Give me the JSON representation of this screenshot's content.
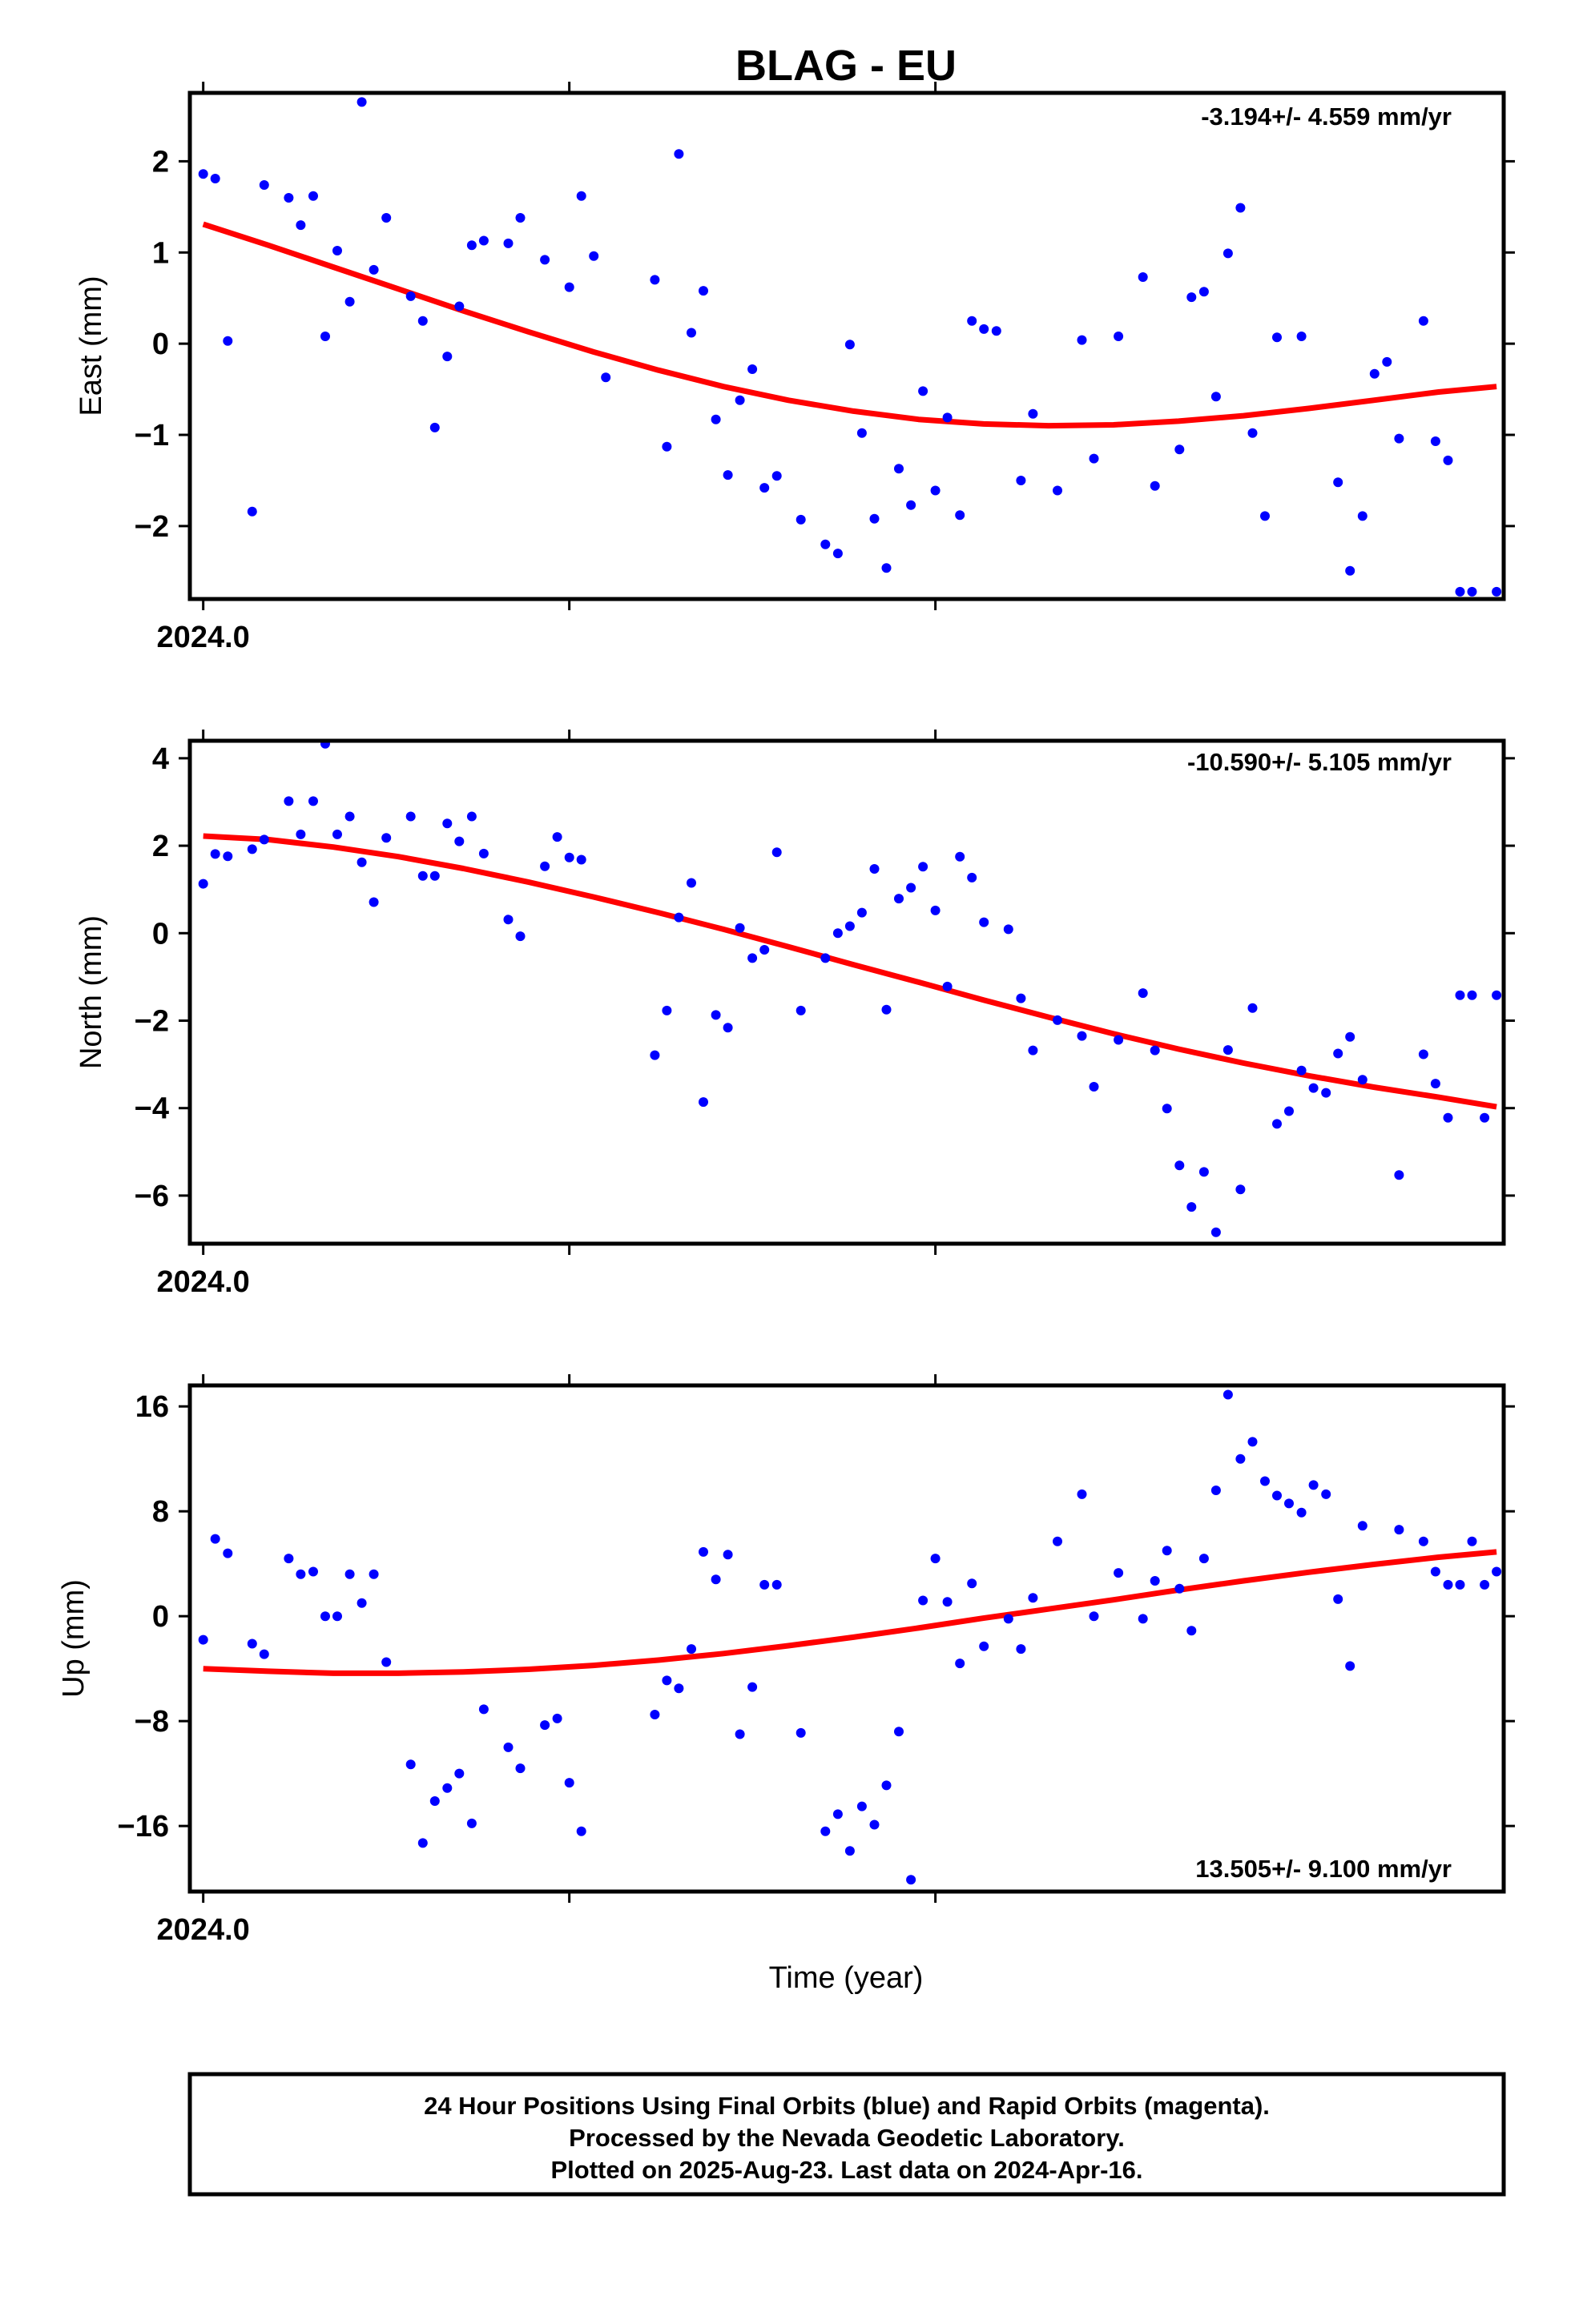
{
  "title": "BLAG - EU",
  "xlabel": "Time (year)",
  "footer": {
    "line1": "24 Hour Positions Using Final Orbits (blue) and Rapid Orbits (magenta).",
    "line2": "Processed by the Nevada Geodetic Laboratory.",
    "line3": "Plotted on 2025-Aug-23. Last data on 2024-Apr-16."
  },
  "colors": {
    "points": "#0000ff",
    "fit": "#ff0000",
    "frame": "#000000"
  },
  "chart_data": [
    {
      "type": "scatter",
      "ylabel": "East (mm)",
      "rate_label": "-3.194+/- 4.559 mm/yr",
      "xlim": [
        2023.997,
        2024.292
      ],
      "ylim": [
        -2.8,
        2.75
      ],
      "yticks": [
        2,
        1,
        0,
        -1,
        -2
      ],
      "ytick_labels": [
        "2",
        "1",
        "0",
        "−1",
        "−2"
      ],
      "xtick_label": "2024.0",
      "series": [
        {
          "kind": "points",
          "x": [
            2024.0,
            2024.0027,
            2024.0055,
            2024.011,
            2024.0137,
            2024.0192,
            2024.0219,
            2024.0247,
            2024.0274,
            2024.0301,
            2024.0329,
            2024.0356,
            2024.0383,
            2024.0411,
            2024.0466,
            2024.0493,
            2024.052,
            2024.0548,
            2024.0575,
            2024.0603,
            2024.063,
            2024.0685,
            2024.0712,
            2024.0767,
            2024.0822,
            2024.0849,
            2024.0877,
            2024.0904,
            2024.1014,
            2024.1041,
            2024.1068,
            2024.1096,
            2024.1123,
            2024.1151,
            2024.1178,
            2024.1205,
            2024.1233,
            2024.126,
            2024.1288,
            2024.1342,
            2024.1397,
            2024.1425,
            2024.1452,
            2024.1479,
            2024.1507,
            2024.1534,
            2024.1562,
            2024.1589,
            2024.1616,
            2024.1644,
            2024.1671,
            2024.1699,
            2024.1726,
            2024.1753,
            2024.1781,
            2024.1836,
            2024.1863,
            2024.1918,
            2024.1973,
            2024.2,
            2024.2055,
            2024.211,
            2024.2137,
            2024.2192,
            2024.2219,
            2024.2247,
            2024.2274,
            2024.2301,
            2024.2329,
            2024.2356,
            2024.2384,
            2024.2411,
            2024.2466,
            2024.2548,
            2024.2575,
            2024.2603,
            2024.263,
            2024.2658,
            2024.2685,
            2024.274,
            2024.2767,
            2024.2795,
            2024.2822,
            2024.2849,
            2024.2904
          ],
          "y": [
            1.86,
            1.81,
            0.03,
            -1.84,
            1.74,
            1.6,
            1.3,
            1.62,
            0.08,
            1.02,
            0.46,
            2.65,
            0.81,
            1.38,
            0.52,
            0.25,
            -0.92,
            -0.14,
            0.41,
            1.08,
            1.13,
            1.1,
            1.38,
            0.92,
            0.62,
            1.62,
            0.96,
            -0.37,
            0.7,
            -1.13,
            2.08,
            0.12,
            0.58,
            -0.83,
            -1.44,
            -0.62,
            -0.28,
            -1.58,
            -1.45,
            -1.93,
            -2.2,
            -2.3,
            -0.01,
            -0.98,
            -1.92,
            -2.46,
            -1.37,
            -1.77,
            -0.52,
            -1.61,
            -0.81,
            -1.88,
            0.25,
            0.16,
            0.14,
            -1.5,
            -0.77,
            -1.61,
            0.04,
            -1.26,
            0.08,
            0.73,
            -1.56,
            -1.16,
            0.51,
            0.57,
            -0.58,
            0.99,
            1.49,
            -0.98,
            -1.89,
            0.07,
            0.08,
            -1.52,
            -2.49,
            -1.89,
            -0.33,
            -0.2,
            -1.04,
            0.25,
            -1.07,
            -1.28,
            -2.72,
            -2.72,
            -2.72
          ]
        },
        {
          "kind": "fit",
          "x": [
            2024.0,
            2024.0146,
            2024.0292,
            2024.0438,
            2024.0584,
            2024.073,
            2024.0876,
            2024.1022,
            2024.1168,
            2024.1314,
            2024.146,
            2024.1606,
            2024.1752,
            2024.1898,
            2024.2044,
            2024.219,
            2024.2336,
            2024.2482,
            2024.2628,
            2024.2774,
            2024.2904
          ],
          "y": [
            1.31,
            1.08,
            0.84,
            0.6,
            0.36,
            0.13,
            -0.09,
            -0.29,
            -0.47,
            -0.62,
            -0.74,
            -0.83,
            -0.88,
            -0.9,
            -0.89,
            -0.85,
            -0.79,
            -0.71,
            -0.62,
            -0.53,
            -0.47
          ]
        }
      ]
    },
    {
      "type": "scatter",
      "ylabel": "North (mm)",
      "rate_label": "-10.590+/- 5.105 mm/yr",
      "xlim": [
        2023.997,
        2024.292
      ],
      "ylim": [
        -7.1,
        4.4
      ],
      "yticks": [
        4,
        2,
        0,
        -2,
        -4,
        -6
      ],
      "ytick_labels": [
        "4",
        "2",
        "0",
        "−2",
        "−4",
        "−6"
      ],
      "xtick_label": "2024.0",
      "series": [
        {
          "kind": "points",
          "x": [
            2024.0,
            2024.0027,
            2024.0055,
            2024.011,
            2024.0137,
            2024.0192,
            2024.0219,
            2024.0247,
            2024.0274,
            2024.0301,
            2024.0329,
            2024.0356,
            2024.0383,
            2024.0411,
            2024.0466,
            2024.0493,
            2024.052,
            2024.0548,
            2024.0575,
            2024.0603,
            2024.063,
            2024.0685,
            2024.0712,
            2024.0767,
            2024.0795,
            2024.0822,
            2024.0849,
            2024.1014,
            2024.1041,
            2024.1068,
            2024.1096,
            2024.1123,
            2024.1151,
            2024.1178,
            2024.1205,
            2024.1233,
            2024.126,
            2024.1288,
            2024.1342,
            2024.1397,
            2024.1425,
            2024.1452,
            2024.1479,
            2024.1507,
            2024.1534,
            2024.1562,
            2024.1589,
            2024.1616,
            2024.1644,
            2024.1671,
            2024.1699,
            2024.1726,
            2024.1753,
            2024.1808,
            2024.1836,
            2024.1863,
            2024.1918,
            2024.1973,
            2024.2,
            2024.2055,
            2024.211,
            2024.2137,
            2024.2164,
            2024.2192,
            2024.2219,
            2024.2247,
            2024.2274,
            2024.2301,
            2024.2329,
            2024.2356,
            2024.2411,
            2024.2438,
            2024.2466,
            2024.2493,
            2024.2521,
            2024.2548,
            2024.2575,
            2024.2603,
            2024.2685,
            2024.274,
            2024.2767,
            2024.2795,
            2024.2822,
            2024.2849,
            2024.2877,
            2024.2904
          ],
          "y": [
            1.13,
            1.81,
            1.76,
            1.92,
            2.14,
            3.02,
            2.26,
            3.02,
            4.33,
            2.26,
            2.67,
            1.62,
            0.71,
            2.18,
            2.67,
            1.31,
            1.31,
            2.51,
            2.1,
            2.67,
            1.82,
            0.31,
            -0.07,
            1.53,
            2.2,
            1.73,
            1.68,
            -2.79,
            -1.77,
            0.36,
            1.15,
            -3.86,
            -1.87,
            -2.16,
            0.12,
            -0.57,
            -0.38,
            1.85,
            -1.77,
            -0.57,
            0.0,
            0.16,
            0.47,
            1.47,
            -1.75,
            0.79,
            1.04,
            1.52,
            0.52,
            -1.22,
            1.75,
            1.27,
            0.25,
            0.09,
            -1.49,
            -2.68,
            -1.99,
            -2.35,
            -3.51,
            -2.44,
            -1.37,
            -2.68,
            -4.01,
            -5.31,
            -6.26,
            -5.46,
            -6.84,
            -2.67,
            -5.86,
            -1.71,
            -4.36,
            -4.07,
            -3.14,
            -3.54,
            -3.65,
            -2.75,
            -2.37,
            -3.35,
            -5.53,
            -2.77,
            -3.44,
            -4.22,
            -1.42,
            -1.42,
            -4.22,
            -1.42
          ]
        },
        {
          "kind": "fit",
          "x": [
            2024.0,
            2024.0146,
            2024.0292,
            2024.0438,
            2024.0584,
            2024.073,
            2024.0876,
            2024.1022,
            2024.1168,
            2024.1314,
            2024.146,
            2024.1606,
            2024.1752,
            2024.1898,
            2024.2044,
            2024.219,
            2024.2336,
            2024.2482,
            2024.2628,
            2024.2774,
            2024.2904
          ],
          "y": [
            2.22,
            2.14,
            1.97,
            1.75,
            1.48,
            1.17,
            0.83,
            0.47,
            0.09,
            -0.31,
            -0.72,
            -1.12,
            -1.53,
            -1.92,
            -2.3,
            -2.65,
            -2.97,
            -3.26,
            -3.52,
            -3.75,
            -3.97
          ]
        }
      ]
    },
    {
      "type": "scatter",
      "ylabel": "Up (mm)",
      "rate_label": "13.505+/- 9.100 mm/yr",
      "xlim": [
        2023.997,
        2024.292
      ],
      "ylim": [
        -21,
        17.6
      ],
      "yticks": [
        16,
        8,
        0,
        -8,
        -16
      ],
      "ytick_labels": [
        "16",
        "8",
        "0",
        "−8",
        "−16"
      ],
      "xtick_label": "2024.0",
      "series": [
        {
          "kind": "points",
          "x": [
            2024.0,
            2024.0027,
            2024.0055,
            2024.011,
            2024.0137,
            2024.0192,
            2024.0219,
            2024.0247,
            2024.0274,
            2024.0301,
            2024.0329,
            2024.0356,
            2024.0383,
            2024.0411,
            2024.0466,
            2024.0493,
            2024.052,
            2024.0548,
            2024.0575,
            2024.0603,
            2024.063,
            2024.0685,
            2024.0712,
            2024.0767,
            2024.0795,
            2024.0822,
            2024.0849,
            2024.1014,
            2024.1041,
            2024.1068,
            2024.1096,
            2024.1123,
            2024.1151,
            2024.1178,
            2024.1205,
            2024.1233,
            2024.126,
            2024.1288,
            2024.1342,
            2024.1397,
            2024.1425,
            2024.1452,
            2024.1479,
            2024.1507,
            2024.1534,
            2024.1562,
            2024.1589,
            2024.1616,
            2024.1644,
            2024.1671,
            2024.1699,
            2024.1726,
            2024.1753,
            2024.1808,
            2024.1836,
            2024.1863,
            2024.1918,
            2024.1973,
            2024.2,
            2024.2055,
            2024.211,
            2024.2137,
            2024.2164,
            2024.2192,
            2024.2219,
            2024.2247,
            2024.2274,
            2024.2301,
            2024.2329,
            2024.2356,
            2024.2384,
            2024.2411,
            2024.2438,
            2024.2466,
            2024.2493,
            2024.2521,
            2024.2548,
            2024.2575,
            2024.2603,
            2024.2685,
            2024.274,
            2024.2767,
            2024.2795,
            2024.2822,
            2024.2849,
            2024.2877,
            2024.2904
          ],
          "y": [
            -1.8,
            5.9,
            4.8,
            -2.1,
            -2.9,
            4.4,
            3.2,
            3.4,
            0.0,
            0.0,
            3.2,
            1.0,
            3.2,
            -3.5,
            -11.3,
            -17.3,
            -14.1,
            -13.1,
            -12.0,
            -15.8,
            -7.1,
            -10.0,
            -11.6,
            -8.3,
            -7.8,
            -12.7,
            -16.4,
            -7.5,
            -4.9,
            -5.5,
            -2.5,
            4.9,
            2.8,
            4.7,
            -9.0,
            -5.4,
            2.4,
            2.4,
            -8.9,
            -16.4,
            -15.1,
            -17.9,
            -14.5,
            -15.9,
            -12.9,
            -8.8,
            -20.1,
            1.2,
            4.4,
            1.1,
            -3.6,
            2.5,
            -2.3,
            -0.2,
            -2.5,
            1.4,
            5.7,
            9.3,
            0.0,
            3.3,
            -0.2,
            2.7,
            5.0,
            2.1,
            -1.1,
            4.4,
            9.6,
            16.9,
            12.0,
            13.3,
            10.3,
            9.2,
            8.6,
            7.9,
            10.0,
            9.3,
            1.3,
            -3.8,
            6.9,
            6.6,
            5.7,
            3.4,
            2.4,
            2.4,
            5.7,
            2.4,
            3.4
          ]
        },
        {
          "kind": "fit",
          "x": [
            2024.0,
            2024.0146,
            2024.0292,
            2024.0438,
            2024.0584,
            2024.073,
            2024.0876,
            2024.1022,
            2024.1168,
            2024.1314,
            2024.146,
            2024.1606,
            2024.1752,
            2024.1898,
            2024.2044,
            2024.219,
            2024.2336,
            2024.2482,
            2024.2628,
            2024.2774,
            2024.2904
          ],
          "y": [
            -4.0,
            -4.2,
            -4.35,
            -4.35,
            -4.25,
            -4.05,
            -3.75,
            -3.35,
            -2.85,
            -2.25,
            -1.6,
            -0.9,
            -0.15,
            0.55,
            1.25,
            2.0,
            2.7,
            3.35,
            3.95,
            4.5,
            4.9
          ]
        }
      ]
    }
  ]
}
